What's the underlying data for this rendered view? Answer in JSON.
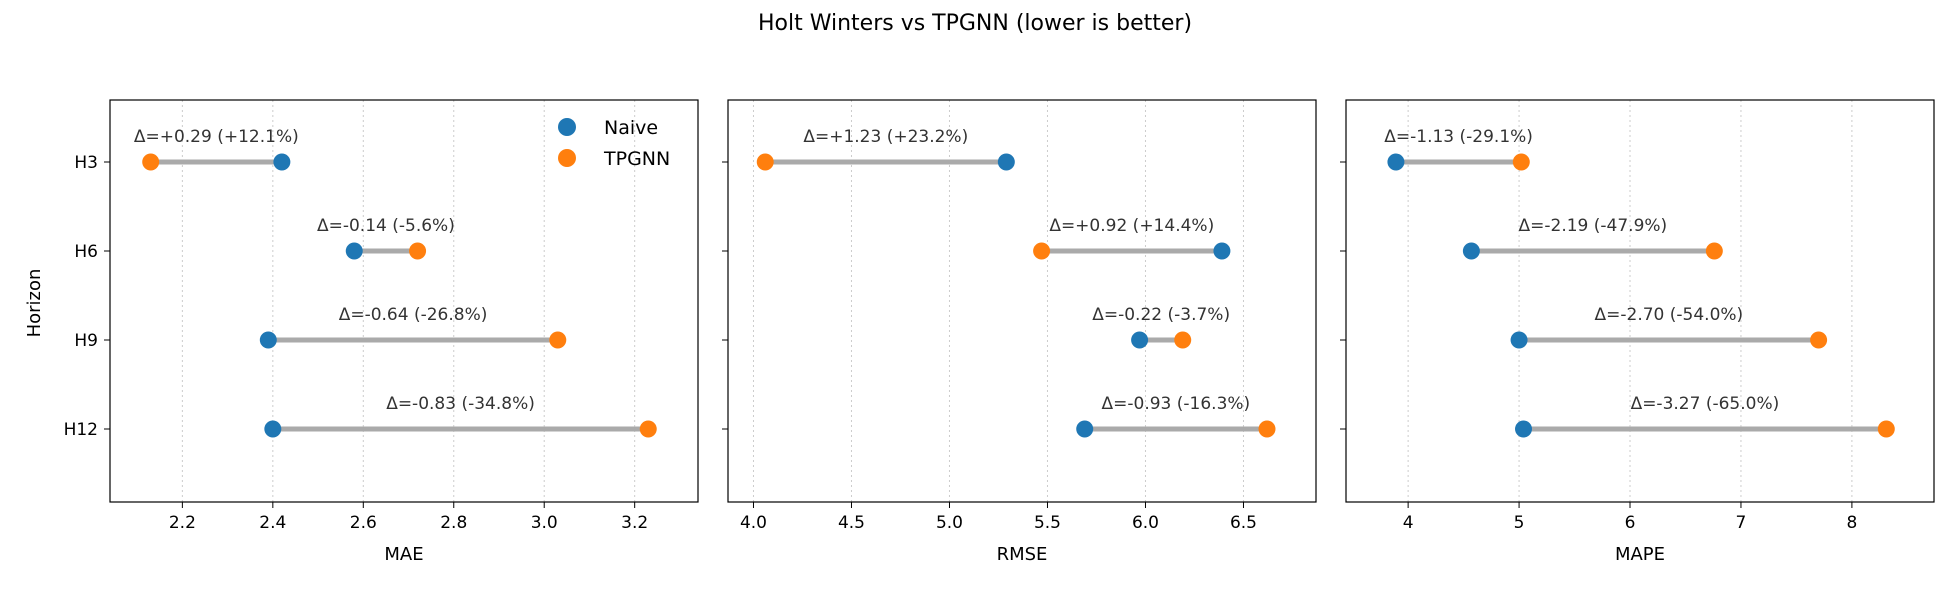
{
  "chart_data": {
    "type": "dumbbell",
    "title": "Holt Winters vs TPGNN (lower is better)",
    "ylabel": "Horizon",
    "categories": [
      "H3",
      "H6",
      "H9",
      "H12"
    ],
    "legend": {
      "placement": "top-right of first panel",
      "entries": [
        {
          "name": "Naive",
          "color": "#1f77b4"
        },
        {
          "name": "TPGNN",
          "color": "#ff7f0e"
        }
      ]
    },
    "colors": {
      "naive": "#1f77b4",
      "tpgnn": "#ff7f0e",
      "connector": "#aaaaaa"
    },
    "grid": "x dotted",
    "panels": [
      {
        "xlabel": "MAE",
        "xlim": [
          2.04,
          3.34
        ],
        "xticks": [
          2.2,
          2.4,
          2.6,
          2.8,
          3.0,
          3.2
        ],
        "xtick_labels": [
          "2.2",
          "2.4",
          "2.6",
          "2.8",
          "3.0",
          "3.2"
        ],
        "naive": [
          2.42,
          2.58,
          2.39,
          2.4
        ],
        "tpgnn": [
          2.13,
          2.72,
          3.03,
          3.23
        ],
        "annotations": [
          "Δ=+0.29 (+12.1%)",
          "Δ=-0.14 (-5.6%)",
          "Δ=-0.64 (-26.8%)",
          "Δ=-0.83 (-34.8%)"
        ]
      },
      {
        "xlabel": "RMSE",
        "xlim": [
          3.87,
          6.87
        ],
        "xticks": [
          4.0,
          4.5,
          5.0,
          5.5,
          6.0,
          6.5
        ],
        "xtick_labels": [
          "4.0",
          "4.5",
          "5.0",
          "5.5",
          "6.0",
          "6.5"
        ],
        "naive": [
          5.29,
          6.39,
          5.97,
          5.69
        ],
        "tpgnn": [
          4.06,
          5.47,
          6.19,
          6.62
        ],
        "annotations": [
          "Δ=+1.23 (+23.2%)",
          "Δ=+0.92 (+14.4%)",
          "Δ=-0.22 (-3.7%)",
          "Δ=-0.93 (-16.3%)"
        ]
      },
      {
        "xlabel": "MAPE",
        "xlim": [
          3.44,
          8.74
        ],
        "xticks": [
          4,
          5,
          6,
          7,
          8
        ],
        "xtick_labels": [
          "4",
          "5",
          "6",
          "7",
          "8"
        ],
        "naive": [
          3.89,
          4.57,
          5.0,
          5.04
        ],
        "tpgnn": [
          5.02,
          6.76,
          7.7,
          8.31
        ],
        "annotations": [
          "Δ=-1.13 (-29.1%)",
          "Δ=-2.19 (-47.9%)",
          "Δ=-2.70 (-54.0%)",
          "Δ=-3.27 (-65.0%)"
        ]
      }
    ]
  }
}
